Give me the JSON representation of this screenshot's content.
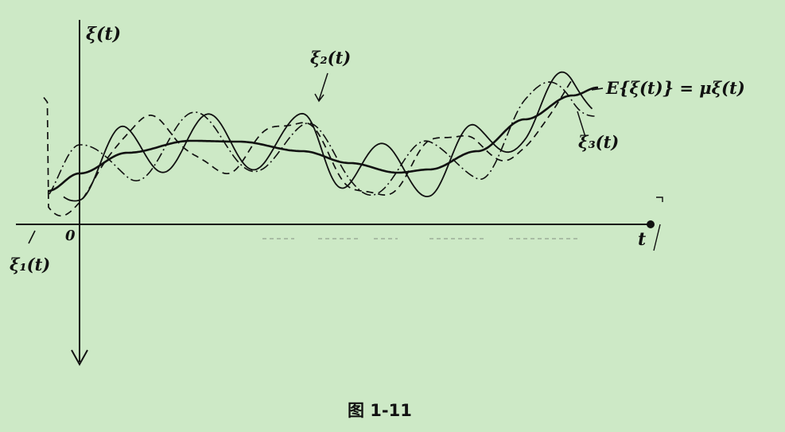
{
  "figure": {
    "y_axis_label": "ξ(t)",
    "x_axis_label": "t",
    "origin_label": "0",
    "curves": {
      "xi1": {
        "label": "ξ₁(t)",
        "style": "dashed",
        "color": "#111111"
      },
      "xi2": {
        "label": "ξ₂(t)",
        "style": "solid-fast",
        "color": "#111111"
      },
      "xi3": {
        "label": "ξ₃(t)",
        "style": "dash-dot",
        "color": "#111111"
      },
      "mean": {
        "label": "E{ξ(t)} = μξ(t)",
        "style": "solid-thick",
        "color": "#111111"
      }
    },
    "caption": "图  1-11"
  }
}
